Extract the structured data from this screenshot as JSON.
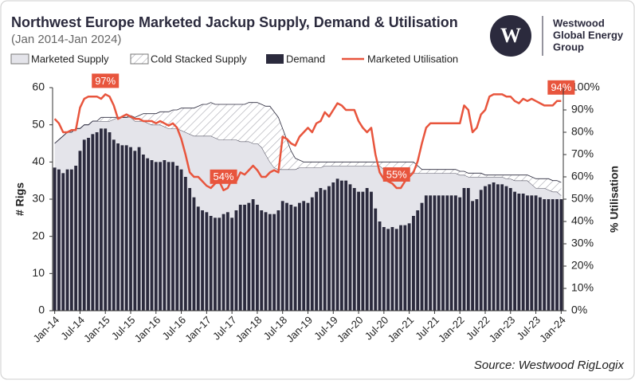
{
  "branding": {
    "mark": "W",
    "lines": [
      "Westwood",
      "Global Energy",
      "Group"
    ]
  },
  "chart_data": {
    "type": "combo",
    "title": "Northwest Europe Marketed Jackup Supply, Demand & Utilisation",
    "subtitle": "(Jan 2014-Jan 2024)",
    "source": "Source: Westwood RigLogix",
    "y_label": "# Rigs",
    "y2_label": "% Utilisation",
    "categories": [
      "Jan-14",
      null,
      null,
      null,
      null,
      null,
      "Jul-14",
      null,
      null,
      null,
      null,
      null,
      "Jan-15",
      null,
      null,
      null,
      null,
      null,
      "Jul-15",
      null,
      null,
      null,
      null,
      null,
      "Jan-16",
      null,
      null,
      null,
      null,
      null,
      "Jul-16",
      null,
      null,
      null,
      null,
      null,
      "Jan-17",
      null,
      null,
      null,
      null,
      null,
      "Jul-17",
      null,
      null,
      null,
      null,
      null,
      "Jan-18",
      null,
      null,
      null,
      null,
      null,
      "Jul-18",
      null,
      null,
      null,
      null,
      null,
      "Jan-19",
      null,
      null,
      null,
      null,
      null,
      "Jul-19",
      null,
      null,
      null,
      null,
      null,
      "Jan-20",
      null,
      null,
      null,
      null,
      null,
      "Jul-20",
      null,
      null,
      null,
      null,
      null,
      "Jan-21",
      null,
      null,
      null,
      null,
      null,
      "Jul-21",
      null,
      null,
      null,
      null,
      null,
      "Jan-22",
      null,
      null,
      null,
      null,
      null,
      "Jul-22",
      null,
      null,
      null,
      null,
      null,
      "Jan-23",
      null,
      null,
      null,
      null,
      null,
      "Jul-23",
      null,
      null,
      null,
      null,
      null,
      "Jan-24"
    ],
    "series": [
      {
        "name": "Marketed Supply",
        "type": "area",
        "color": "#e4e4ea",
        "values": [
          45,
          46,
          47,
          48,
          48,
          49,
          49,
          50,
          50,
          51,
          51,
          51,
          51,
          51,
          51.5,
          52,
          52,
          52,
          52,
          51,
          51,
          51,
          50.5,
          50,
          50,
          50,
          49.5,
          49,
          49,
          49,
          48.5,
          48,
          47.5,
          47,
          47,
          47,
          47,
          47,
          46.5,
          46,
          46,
          46,
          46,
          46,
          45.5,
          45.5,
          45.5,
          45,
          45,
          44,
          42,
          40,
          38.5,
          38,
          38,
          38,
          38,
          38,
          38.5,
          38.5,
          38.5,
          38.5,
          38.5,
          38.5,
          39,
          39,
          39,
          39,
          39,
          39,
          39,
          39,
          39,
          39,
          39,
          39,
          39,
          39,
          38,
          38,
          38,
          37,
          37,
          37,
          37,
          37,
          37,
          37,
          37,
          37,
          37,
          37,
          37,
          37,
          37,
          37,
          36.5,
          36.5,
          36,
          36,
          36,
          36,
          36,
          36,
          36,
          36,
          36,
          35.5,
          35.5,
          35,
          35,
          35,
          35,
          34,
          33,
          33,
          33,
          32.5,
          32,
          32,
          31
        ]
      },
      {
        "name": "Cold Stacked Supply",
        "type": "area",
        "pattern": "hatch",
        "color": "#b8b8c0",
        "values": [
          0,
          0,
          0,
          0,
          0,
          0,
          0,
          0,
          0,
          0,
          0,
          1,
          1,
          1,
          0.5,
          0,
          0,
          0,
          0.5,
          1,
          1.5,
          2,
          2.5,
          3,
          3,
          3.5,
          4,
          4.5,
          5,
          5,
          6,
          6.5,
          7,
          7.5,
          8,
          8.5,
          8.5,
          9,
          9,
          9.5,
          9.5,
          9.5,
          9.5,
          9.5,
          10,
          10,
          10.5,
          11,
          11,
          11.5,
          13,
          15,
          15,
          14,
          11,
          8,
          5,
          3,
          2,
          1.5,
          1.5,
          1.5,
          1.5,
          1.5,
          1,
          1,
          1,
          1,
          1,
          1,
          1,
          1,
          1,
          1,
          1,
          1,
          1,
          1,
          2,
          2,
          2,
          3,
          3,
          3,
          3,
          3,
          2,
          1,
          1,
          1,
          1,
          1,
          1,
          1,
          1,
          1,
          1,
          1,
          1,
          1,
          1,
          1,
          0.5,
          0.5,
          0.5,
          0.5,
          0.5,
          1,
          1,
          1.5,
          1.5,
          1.5,
          1.5,
          2,
          2.5,
          2.5,
          2.5,
          3,
          3,
          3,
          3.5
        ]
      },
      {
        "name": "Demand",
        "type": "bar",
        "color": "#2b2a3d",
        "values": [
          38.5,
          38,
          37,
          38,
          38,
          39,
          43,
          46,
          46.5,
          47.5,
          48,
          49,
          49,
          48,
          46,
          45,
          44.5,
          44.5,
          44,
          43,
          44,
          42,
          41,
          40.5,
          40,
          40,
          40.5,
          40,
          40,
          39,
          38,
          36,
          33,
          30.5,
          28,
          27,
          26.5,
          25.5,
          25,
          25,
          26,
          26.5,
          25,
          27,
          28.5,
          28.5,
          29,
          30,
          28.5,
          27,
          26.5,
          26,
          26,
          27,
          29.5,
          29,
          28.5,
          28,
          29,
          29.5,
          29,
          30.5,
          32,
          33,
          32.5,
          33.5,
          34.5,
          35.5,
          35,
          35,
          34,
          33,
          32,
          32,
          33,
          32,
          27.5,
          24,
          22.5,
          22,
          22.5,
          22,
          23,
          23,
          23.5,
          25.5,
          27,
          29,
          31,
          31,
          31,
          31,
          31,
          31,
          31,
          31,
          30.5,
          33,
          33,
          29.5,
          30,
          32.5,
          33.5,
          34,
          34.5,
          34,
          34,
          33.5,
          33,
          32,
          31.5,
          31.5,
          31,
          31,
          31,
          30.5,
          30,
          30,
          30,
          30,
          30
        ]
      },
      {
        "name": "Marketed Utilisation",
        "type": "line",
        "axis": "y2",
        "color": "#e8553d",
        "values": [
          86,
          84,
          80,
          80,
          81,
          81,
          91,
          95,
          96,
          96,
          96,
          95,
          97,
          96,
          92,
          86,
          87,
          88,
          87,
          86,
          86,
          85,
          85,
          85,
          84,
          85,
          84,
          83,
          84,
          82,
          77,
          70,
          62,
          60,
          60,
          58,
          56,
          55,
          57,
          58,
          54,
          55,
          59,
          58,
          62,
          61,
          63,
          65,
          63,
          60,
          60,
          62,
          63,
          62,
          78,
          77,
          75,
          74,
          78,
          80,
          82,
          80,
          84,
          85,
          89,
          87,
          90,
          93,
          92,
          90,
          90,
          90,
          85,
          82,
          80,
          82,
          70,
          62,
          59,
          58,
          57,
          55,
          55,
          58,
          60,
          62,
          67,
          75,
          82,
          84,
          84,
          84,
          84,
          84,
          84,
          84,
          84,
          92,
          90,
          80,
          82,
          88,
          90,
          96,
          97,
          97,
          97,
          96,
          96,
          94,
          93,
          95,
          94,
          95,
          94,
          93,
          92,
          92,
          92,
          94,
          94
        ],
        "value_labels": [
          null,
          null,
          null,
          null,
          null,
          null,
          null,
          null,
          null,
          null,
          null,
          null,
          "97%",
          null,
          null,
          null,
          null,
          null,
          null,
          null,
          null,
          null,
          null,
          null,
          null,
          null,
          null,
          null,
          null,
          null,
          null,
          null,
          null,
          null,
          null,
          null,
          null,
          null,
          null,
          null,
          "54%",
          null,
          null,
          null,
          null,
          null,
          null,
          null,
          null,
          null,
          null,
          null,
          null,
          null,
          null,
          null,
          null,
          null,
          null,
          null,
          null,
          null,
          null,
          null,
          null,
          null,
          null,
          null,
          null,
          null,
          null,
          null,
          null,
          null,
          null,
          null,
          null,
          null,
          null,
          null,
          null,
          "55%",
          null,
          null,
          null,
          null,
          null,
          null,
          null,
          null,
          null,
          null,
          null,
          null,
          null,
          null,
          null,
          null,
          null,
          null,
          null,
          null,
          null,
          null,
          null,
          null,
          null,
          null,
          null,
          null,
          null,
          null,
          null,
          null,
          null,
          null,
          null,
          null,
          null,
          null,
          "94%"
        ]
      }
    ],
    "ylim": [
      0,
      60
    ],
    "yticks": [
      0,
      10,
      20,
      30,
      40,
      50,
      60
    ],
    "y2lim": [
      0,
      100
    ],
    "y2ticks": [
      {
        "value": 0,
        "label": "0%"
      },
      {
        "value": 10,
        "label": "10%"
      },
      {
        "value": 20,
        "label": "20%"
      },
      {
        "value": 30,
        "label": "30%"
      },
      {
        "value": 40,
        "label": "40%"
      },
      {
        "value": 50,
        "label": "50%"
      },
      {
        "value": 60,
        "label": "60%"
      },
      {
        "value": 70,
        "label": "70%"
      },
      {
        "value": 80,
        "label": "80%"
      },
      {
        "value": 90,
        "label": "90%"
      },
      {
        "value": 100,
        "label": "100%"
      }
    ],
    "grid": false,
    "legend": "top"
  }
}
